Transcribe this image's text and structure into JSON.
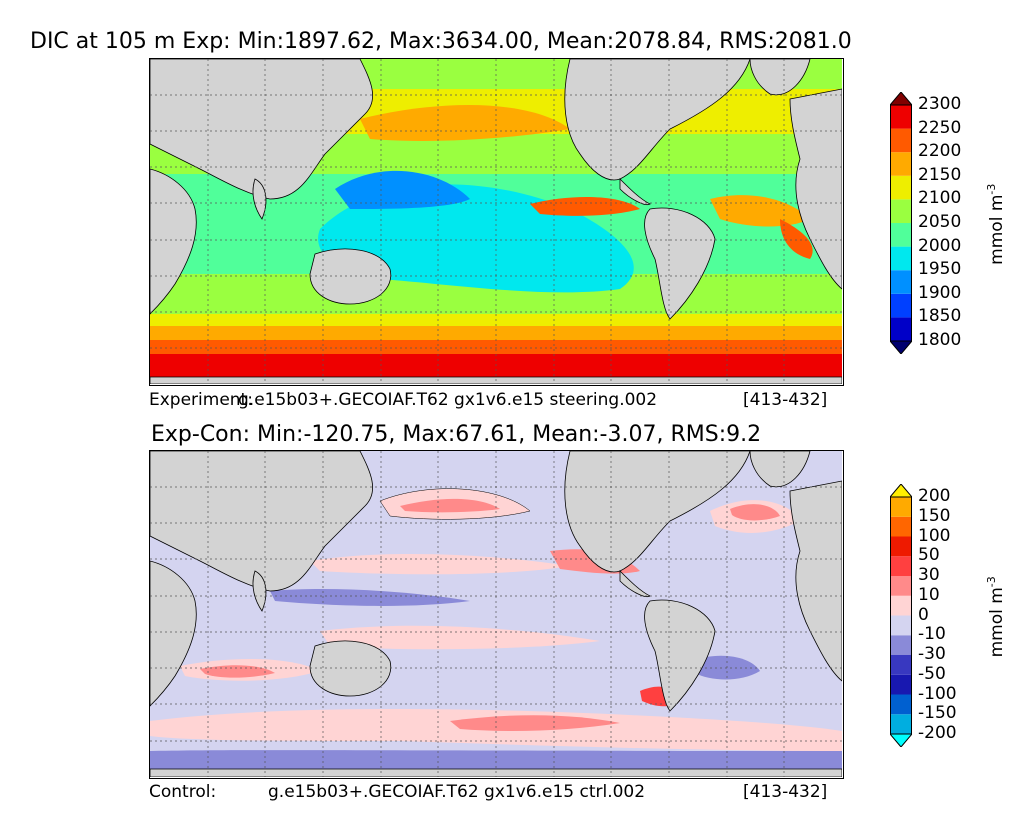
{
  "top": {
    "title": "DIC at 105 m Exp: Min:1897.62, Max:3634.00, Mean:2078.84, RMS:2081.0",
    "caption_left": "Experiment:",
    "caption_mid": "g.e15b03+.GECOIAF.T62 gx1v6.e15 steering.002",
    "caption_right": "[413-432]",
    "units": "mmol m",
    "units_exp": "-3",
    "colorbar": {
      "colors": [
        "#00006e",
        "#0000c8",
        "#0040ff",
        "#0090ff",
        "#00e8ee",
        "#50ff9a",
        "#9aff40",
        "#eeee00",
        "#ffaa00",
        "#ff5a00",
        "#ee0000",
        "#800000"
      ],
      "labels": [
        "1800",
        "1850",
        "1900",
        "1950",
        "2000",
        "2050",
        "2100",
        "2150",
        "2200",
        "2250",
        "2300"
      ]
    }
  },
  "bottom": {
    "title": "Exp-Con: Min:-120.75, Max:67.61, Mean:-3.07, RMS:9.2",
    "caption_left": "Control:",
    "caption_mid": "g.e15b03+.GECOIAF.T62 gx1v6.e15 ctrl.002",
    "caption_right": "[413-432]",
    "units": "mmol m",
    "units_exp": "-3",
    "colorbar": {
      "colors": [
        "#00ffff",
        "#00aee0",
        "#0060d0",
        "#1818b0",
        "#3838c0",
        "#8a8ad8",
        "#d4d4f0",
        "#ffd4d4",
        "#ff8a8a",
        "#ff4040",
        "#ee1a00",
        "#ff6600",
        "#ffaa00",
        "#ffee00"
      ],
      "labels": [
        "-200",
        "-150",
        "-100",
        "-50",
        "-30",
        "-10",
        "0",
        "10",
        "30",
        "50",
        "100",
        "150",
        "200"
      ]
    }
  }
}
